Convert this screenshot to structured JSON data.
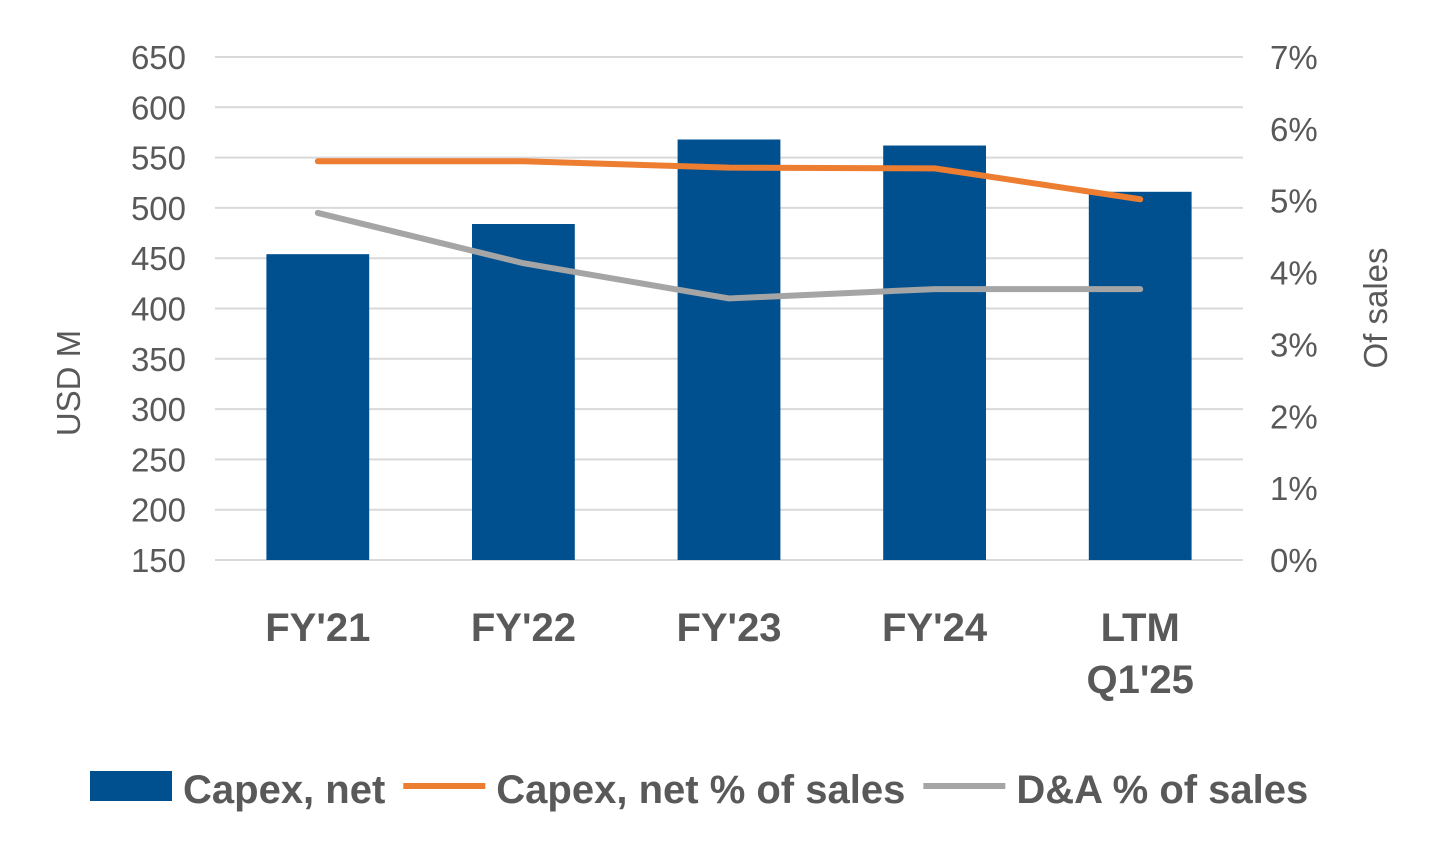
{
  "chart_data": {
    "type": "bar",
    "categories": [
      [
        "FY'21"
      ],
      [
        "FY'22"
      ],
      [
        "FY'23"
      ],
      [
        "FY'24"
      ],
      [
        "LTM",
        "Q1'25"
      ]
    ],
    "category_labels": [
      "FY'21",
      "FY'22",
      "FY'23",
      "FY'24",
      "LTM Q1'25"
    ],
    "series": [
      {
        "name": "Capex, net",
        "type": "bar",
        "axis": "left",
        "color": "#00508F",
        "values": [
          454,
          484,
          568,
          562,
          516
        ]
      },
      {
        "name": "Capex, net % of sales",
        "type": "line",
        "axis": "right",
        "color": "#ED7D31",
        "values": [
          5.55,
          5.55,
          5.46,
          5.45,
          5.02
        ]
      },
      {
        "name": "D&A % of sales",
        "type": "line",
        "axis": "right",
        "color": "#A5A5A5",
        "values": [
          4.83,
          4.13,
          3.64,
          3.77,
          3.77
        ]
      }
    ],
    "left_axis": {
      "label": "USD M",
      "min": 150,
      "max": 650,
      "ticks": [
        "650",
        "600",
        "550",
        "500",
        "450",
        "400",
        "350",
        "300",
        "250",
        "200",
        "150"
      ]
    },
    "right_axis": {
      "label": "Of sales",
      "min": 0,
      "max": 7,
      "ticks": [
        "7%",
        "6%",
        "5%",
        "4%",
        "3%",
        "2%",
        "1%",
        "0%"
      ]
    },
    "grid": true,
    "legend_position": "bottom"
  }
}
